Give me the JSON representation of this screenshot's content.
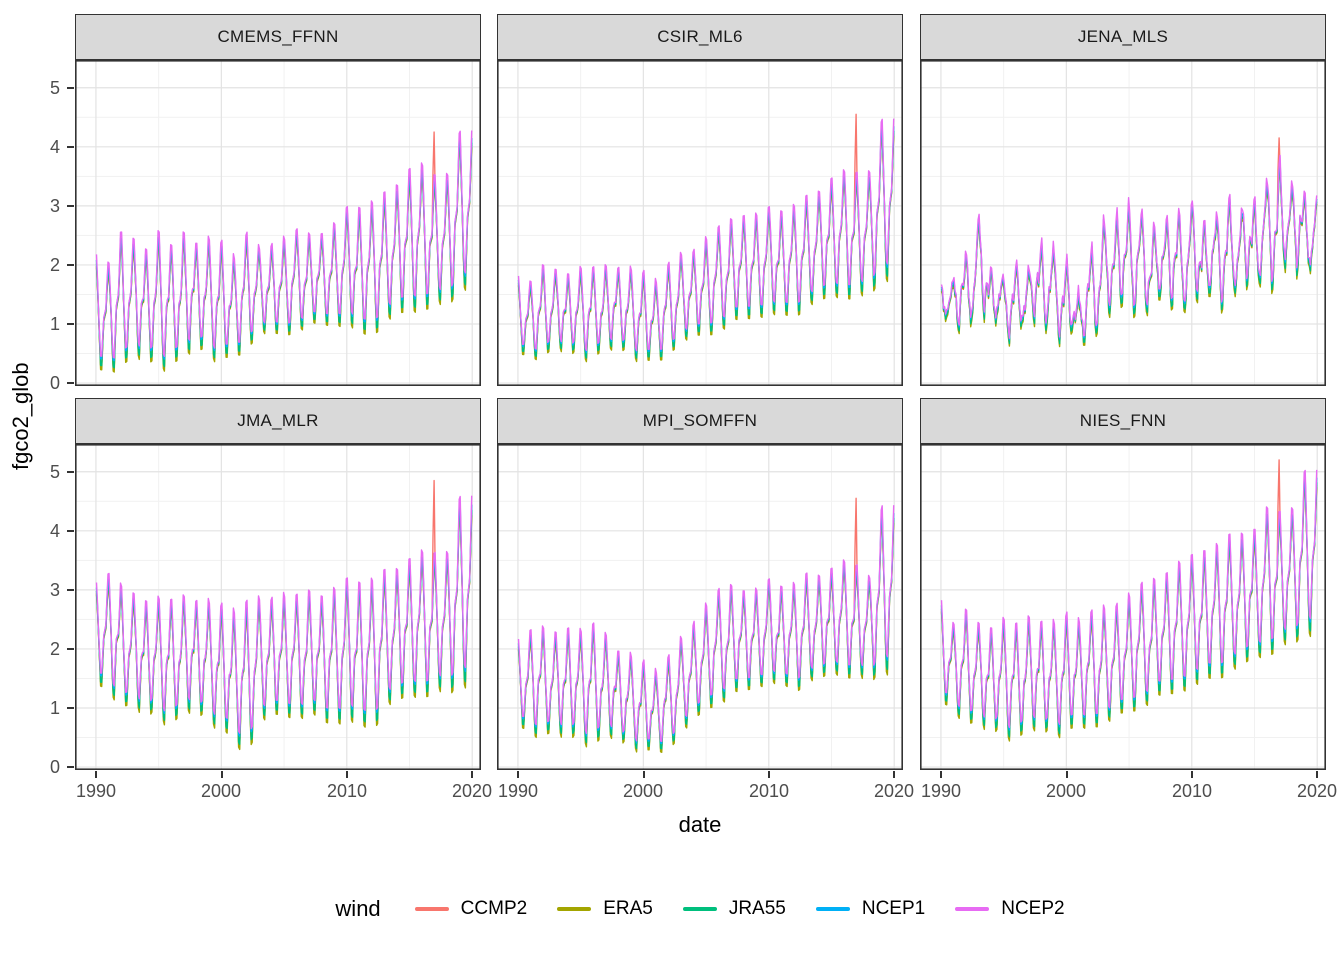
{
  "figure": {
    "x_axis_label": "date",
    "y_axis_label": "fgco2_glob",
    "legend": {
      "title": "wind",
      "items": [
        {
          "label": "CCMP2",
          "color": "#F8766D"
        },
        {
          "label": "ERA5",
          "color": "#A3A500"
        },
        {
          "label": "JRA55",
          "color": "#00BF7D"
        },
        {
          "label": "NCEP1",
          "color": "#00B0F6"
        },
        {
          "label": "NCEP2",
          "color": "#E76BF3"
        }
      ]
    },
    "colors": {
      "strip_bg": "#D9D9D9",
      "panel_border": "#333333",
      "grid_major": "#E3E3E3",
      "grid_minor": "#F1F1F1",
      "tick_label": "#4D4D4D",
      "text": "#000000"
    }
  },
  "chart_data": {
    "type": "line",
    "title": "",
    "xlabel": "date",
    "ylabel": "fgco2_glob",
    "x_ticks": [
      1990,
      2000,
      2010,
      2020
    ],
    "x_minor_ticks": [
      1995,
      2005,
      2015
    ],
    "y_ticks": [
      0,
      1,
      2,
      3,
      4,
      5
    ],
    "y_minor_ticks": [
      0.5,
      1.5,
      2.5,
      3.5,
      4.5
    ],
    "xlim": [
      1988.33,
      2020.7
    ],
    "ylim": [
      -0.05,
      5.47
    ],
    "grid": "major+minor",
    "legend_position": "bottom",
    "series_names": [
      "CCMP2",
      "ERA5",
      "JRA55",
      "NCEP1",
      "NCEP2"
    ],
    "series_colors": {
      "CCMP2": "#F8766D",
      "ERA5": "#A3A500",
      "JRA55": "#00BF7D",
      "NCEP1": "#00B0F6",
      "NCEP2": "#E76BF3"
    },
    "series_style": {
      "CCMP2": {
        "peak": 0.94,
        "trough": 1.04,
        "offset": -0.03
      },
      "ERA5": {
        "peak": 0.9,
        "trough": 1.14,
        "offset": -0.02
      },
      "JRA55": {
        "peak": 0.95,
        "trough": 1.08,
        "offset": 0.0
      },
      "NCEP1": {
        "peak": 1.0,
        "trough": 0.97,
        "offset": 0.02
      },
      "NCEP2": {
        "peak": 1.1,
        "trough": 0.93,
        "offset": 0.03
      }
    },
    "years": [
      1990,
      1991,
      1992,
      1993,
      1994,
      1995,
      1996,
      1997,
      1998,
      1999,
      2000,
      2001,
      2002,
      2003,
      2004,
      2005,
      2006,
      2007,
      2008,
      2009,
      2010,
      2011,
      2012,
      2013,
      2014,
      2015,
      2016,
      2017,
      2018,
      2019
    ],
    "seasonal_note": "monthly data; annual peak near year end, trough mid-year; env_min/env_max are per-year seasonal envelope of fgco2_glob",
    "facets": [
      {
        "name": "CMEMS_FFNN",
        "env_min": [
          0.3,
          0.25,
          0.45,
          0.55,
          0.5,
          0.35,
          0.45,
          0.5,
          0.75,
          0.55,
          0.5,
          0.5,
          0.7,
          0.95,
          0.9,
          0.9,
          1.0,
          1.05,
          1.1,
          1.05,
          1.15,
          0.9,
          0.95,
          1.15,
          1.3,
          1.3,
          1.4,
          1.45,
          1.4,
          1.75
        ],
        "env_max": [
          2.1,
          2.0,
          2.45,
          2.35,
          2.2,
          2.5,
          2.2,
          2.5,
          2.3,
          2.35,
          2.3,
          2.1,
          2.45,
          2.2,
          2.3,
          2.4,
          2.5,
          2.45,
          2.5,
          2.6,
          2.9,
          2.9,
          3.0,
          3.1,
          3.3,
          3.55,
          3.6,
          3.4,
          3.5,
          4.15
        ],
        "ccmp2_spike": 4.25,
        "spike_year": 2016,
        "noise": 0.07
      },
      {
        "name": "CSIR_ML6",
        "env_min": [
          0.55,
          0.45,
          0.6,
          0.65,
          0.6,
          0.5,
          0.55,
          0.6,
          0.7,
          0.55,
          0.45,
          0.4,
          0.6,
          0.8,
          0.85,
          0.9,
          1.0,
          1.1,
          1.2,
          1.2,
          1.3,
          1.2,
          1.25,
          1.4,
          1.5,
          1.55,
          1.6,
          1.55,
          1.6,
          1.9
        ],
        "env_max": [
          1.75,
          1.7,
          1.9,
          1.85,
          1.8,
          1.9,
          1.85,
          1.95,
          1.9,
          1.85,
          1.8,
          1.7,
          1.95,
          2.1,
          2.2,
          2.4,
          2.55,
          2.7,
          2.8,
          2.75,
          2.9,
          2.85,
          2.95,
          3.05,
          3.2,
          3.4,
          3.5,
          3.45,
          3.55,
          4.35
        ],
        "ccmp2_spike": 4.55,
        "spike_year": 2016,
        "noise": 0.07
      },
      {
        "name": "JENA_MLS",
        "env_min": [
          0.9,
          1.0,
          1.05,
          1.3,
          1.0,
          0.95,
          0.95,
          1.0,
          1.05,
          0.95,
          0.85,
          0.6,
          0.9,
          1.2,
          1.25,
          1.3,
          1.35,
          1.3,
          1.4,
          1.35,
          1.45,
          1.4,
          1.45,
          1.55,
          1.6,
          1.7,
          1.8,
          1.85,
          1.9,
          2.05
        ],
        "env_max": [
          1.6,
          1.9,
          2.0,
          2.75,
          1.95,
          1.75,
          1.8,
          2.0,
          2.4,
          2.1,
          1.95,
          1.6,
          2.2,
          2.6,
          2.9,
          3.0,
          2.7,
          2.6,
          2.9,
          2.7,
          2.95,
          2.75,
          2.85,
          2.9,
          3.0,
          3.1,
          3.3,
          3.6,
          3.5,
          3.05
        ],
        "ccmp2_spike": 4.15,
        "spike_year": 2016,
        "noise": 0.28
      },
      {
        "name": "JMA_MLR",
        "env_min": [
          1.45,
          1.35,
          1.2,
          1.1,
          1.0,
          0.95,
          0.85,
          1.0,
          1.05,
          0.9,
          0.75,
          0.5,
          0.35,
          0.9,
          0.95,
          1.0,
          0.95,
          1.0,
          0.9,
          0.85,
          0.95,
          0.8,
          0.75,
          1.15,
          1.25,
          1.3,
          1.35,
          1.4,
          1.35,
          1.55
        ],
        "env_max": [
          3.05,
          3.25,
          2.95,
          2.85,
          2.75,
          2.8,
          2.7,
          2.85,
          2.75,
          2.7,
          2.65,
          2.6,
          2.7,
          2.75,
          2.8,
          2.85,
          2.8,
          2.9,
          2.85,
          2.9,
          3.1,
          3.05,
          3.1,
          3.2,
          3.3,
          3.45,
          3.55,
          3.5,
          3.6,
          4.45
        ],
        "ccmp2_spike": 4.85,
        "spike_year": 2016,
        "noise": 0.08
      },
      {
        "name": "MPI_SOMFFN",
        "env_min": [
          0.75,
          0.6,
          0.7,
          0.65,
          0.6,
          0.55,
          0.5,
          0.6,
          0.55,
          0.45,
          0.35,
          0.3,
          0.4,
          0.7,
          0.85,
          1.1,
          1.2,
          1.3,
          1.4,
          1.45,
          1.55,
          1.45,
          1.4,
          1.55,
          1.6,
          1.65,
          1.7,
          1.6,
          1.55,
          1.75
        ],
        "env_max": [
          2.1,
          2.3,
          2.25,
          2.2,
          2.3,
          2.25,
          2.3,
          2.2,
          1.9,
          1.8,
          1.7,
          1.6,
          1.8,
          2.1,
          2.4,
          2.7,
          2.9,
          3.0,
          2.95,
          2.9,
          3.1,
          3.0,
          3.05,
          3.15,
          3.2,
          3.3,
          3.4,
          3.3,
          3.2,
          4.3
        ],
        "ccmp2_spike": 4.55,
        "spike_year": 2016,
        "noise": 0.08
      },
      {
        "name": "NIES_FNN",
        "env_min": [
          1.15,
          1.0,
          0.9,
          0.8,
          0.7,
          0.65,
          0.6,
          0.7,
          0.75,
          0.65,
          0.7,
          0.75,
          0.8,
          0.85,
          0.95,
          1.05,
          1.15,
          1.25,
          1.35,
          1.4,
          1.5,
          1.55,
          1.65,
          1.75,
          1.85,
          1.95,
          2.05,
          2.15,
          2.2,
          2.4
        ],
        "env_max": [
          2.75,
          2.4,
          2.55,
          2.35,
          2.3,
          2.45,
          2.3,
          2.5,
          2.4,
          2.35,
          2.5,
          2.45,
          2.55,
          2.6,
          2.7,
          2.85,
          3.0,
          3.1,
          3.25,
          3.35,
          3.5,
          3.6,
          3.7,
          3.8,
          3.9,
          3.95,
          4.3,
          4.2,
          4.35,
          4.9
        ],
        "ccmp2_spike": 5.2,
        "spike_year": 2016,
        "noise": 0.08
      }
    ]
  }
}
